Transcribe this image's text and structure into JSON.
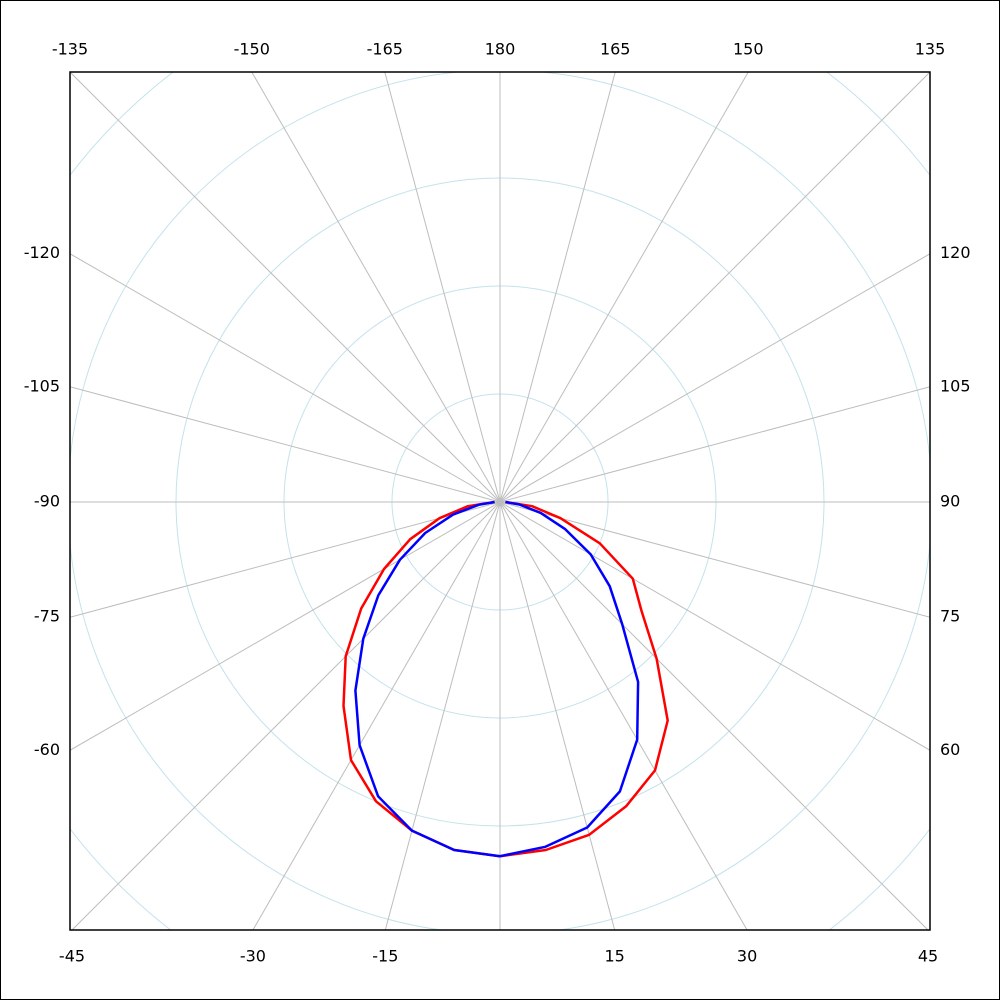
{
  "chart_data": {
    "type": "polar",
    "angle_ticks": [
      -135,
      -150,
      -165,
      180,
      165,
      150,
      135,
      -120,
      -105,
      -90,
      -75,
      -60,
      120,
      105,
      90,
      75,
      60,
      -45,
      -30,
      -15,
      {
        "value": 0,
        "label": null
      },
      15,
      30,
      45
    ],
    "rlim": [
      0,
      5
    ],
    "rticks": [
      1,
      2,
      3,
      4,
      5
    ],
    "theta": [
      -90,
      -82.5,
      -75,
      -67.5,
      -60,
      -52.5,
      -45,
      -37.5,
      -30,
      -22.5,
      -15,
      -7.5,
      0,
      7.5,
      15,
      22.5,
      30,
      37.5,
      45,
      52.5,
      60,
      67.5,
      75,
      82.5,
      90
    ],
    "series": [
      {
        "color": "#ff0000",
        "values": [
          0.05,
          0.3,
          0.58,
          0.9,
          1.24,
          1.62,
          2.02,
          2.38,
          2.76,
          3.0,
          3.15,
          3.25,
          3.28,
          3.25,
          3.19,
          3.05,
          2.87,
          2.55,
          2.05,
          1.65,
          1.42,
          1.0,
          0.58,
          0.3,
          0.05
        ]
      },
      {
        "color": "#0000ff",
        "values": [
          0.05,
          0.2,
          0.45,
          0.75,
          1.07,
          1.42,
          1.79,
          2.2,
          2.6,
          2.95,
          3.15,
          3.25,
          3.28,
          3.22,
          3.12,
          2.9,
          2.54,
          2.1,
          1.6,
          1.28,
          0.97,
          0.65,
          0.39,
          0.18,
          0.05
        ]
      }
    ]
  }
}
